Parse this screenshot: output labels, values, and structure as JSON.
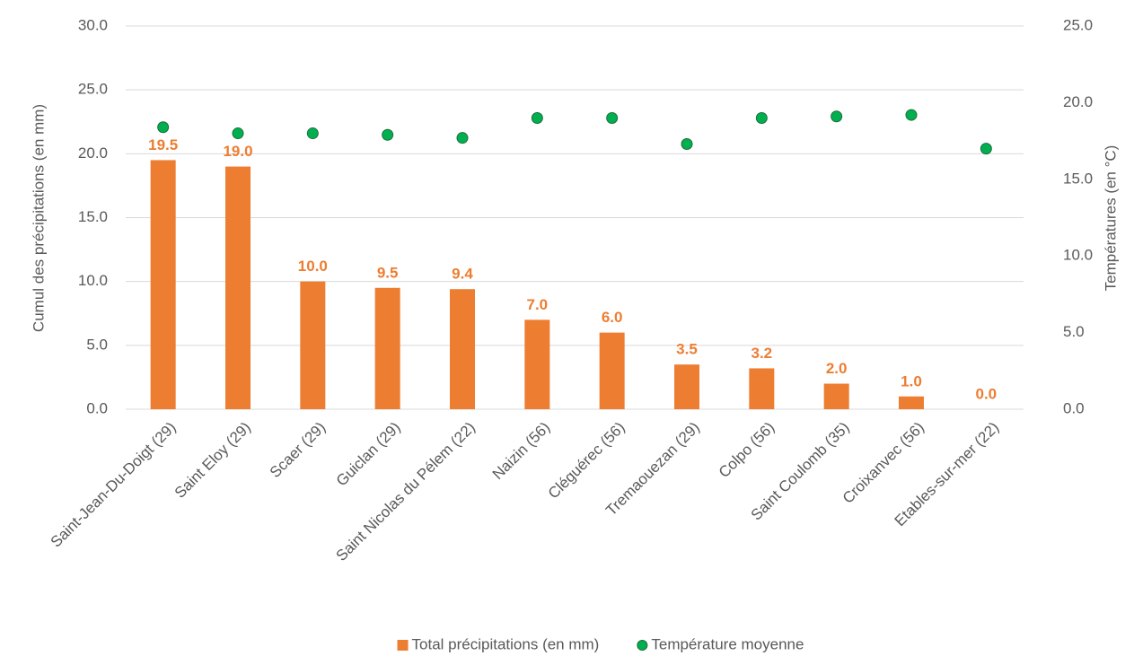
{
  "chart_data": {
    "type": "bar",
    "categories": [
      "Saint-Jean-Du-Doigt (29)",
      "Saint Eloy (29)",
      "Scaer (29)",
      "Guiclan (29)",
      "Saint Nicolas du Pélem (22)",
      "Naizin (56)",
      "Cléguérec (56)",
      "Tremaouezan (29)",
      "Colpo (56)",
      "Saint Coulomb (35)",
      "Croixanvec (56)",
      "Etables-sur-mer (22)"
    ],
    "series": [
      {
        "name": "Total précipitations (en mm)",
        "type": "bar",
        "color": "#ed7d31",
        "values": [
          19.5,
          19.0,
          10.0,
          9.5,
          9.4,
          7.0,
          6.0,
          3.5,
          3.2,
          2.0,
          1.0,
          0.0
        ],
        "value_labels": [
          "19.5",
          "19.0",
          "10.0",
          "9.5",
          "9.4",
          "7.0",
          "6.0",
          "3.5",
          "3.2",
          "2.0",
          "1.0",
          "0.0"
        ]
      },
      {
        "name": "Température moyenne",
        "type": "scatter",
        "color": "#00b050",
        "axis": "y2",
        "values": [
          18.4,
          18.0,
          18.0,
          17.9,
          17.7,
          19.0,
          19.0,
          17.3,
          19.0,
          19.1,
          19.2,
          17.0
        ]
      }
    ],
    "y_label": "Cumul des précipitations (en mm)",
    "y2_label": "Températures (en °C)",
    "ylim": [
      0,
      30
    ],
    "yticks": [
      {
        "value": 0,
        "label": "0.0"
      },
      {
        "value": 5,
        "label": "5.0"
      },
      {
        "value": 10,
        "label": "10.0"
      },
      {
        "value": 15,
        "label": "15.0"
      },
      {
        "value": 20,
        "label": "20.0"
      },
      {
        "value": 25,
        "label": "25.0"
      },
      {
        "value": 30,
        "label": "30.0"
      }
    ],
    "y2lim": [
      0,
      25
    ],
    "y2ticks": [
      {
        "value": 0,
        "label": "0.0"
      },
      {
        "value": 5,
        "label": "5.0"
      },
      {
        "value": 10,
        "label": "10.0"
      },
      {
        "value": 15,
        "label": "15.0"
      },
      {
        "value": 20,
        "label": "20.0"
      },
      {
        "value": 25,
        "label": "25.0"
      }
    ],
    "grid": true,
    "legend": "bottom"
  }
}
